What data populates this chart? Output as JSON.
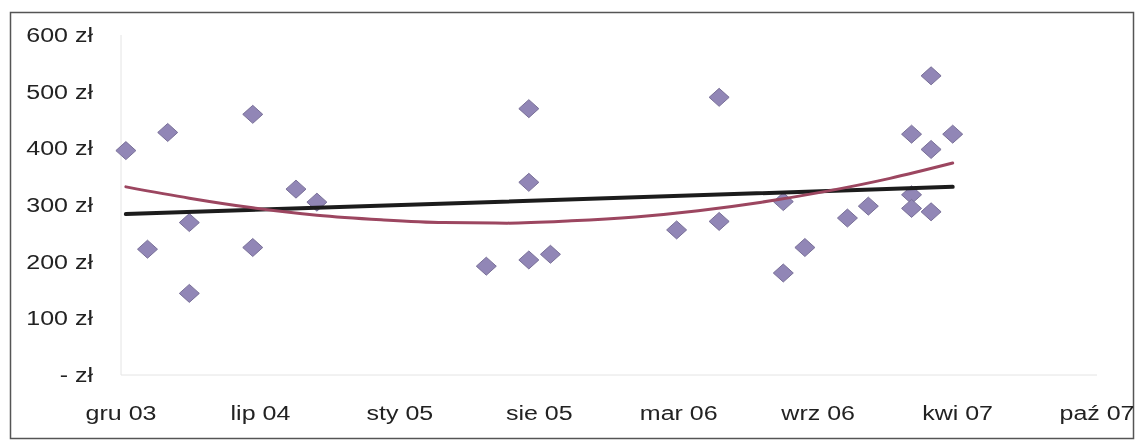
{
  "chart_data": {
    "type": "scatter",
    "marker": "diamond",
    "xlim": [
      "2003-12-25",
      "2007-10-25"
    ],
    "xticks": [
      {
        "value": "2003-12-25",
        "label": "gru 03"
      },
      {
        "value": "2004-07-12",
        "label": "lip 04"
      },
      {
        "value": "2005-01-28",
        "label": "sty 05"
      },
      {
        "value": "2005-08-16",
        "label": "sie 05"
      },
      {
        "value": "2006-03-04",
        "label": "mar 06"
      },
      {
        "value": "2006-09-20",
        "label": "wrz 06"
      },
      {
        "value": "2007-04-08",
        "label": "kwi 07"
      },
      {
        "value": "2007-10-25",
        "label": "paź 07"
      }
    ],
    "ylim": [
      0,
      600
    ],
    "yticks": [
      {
        "value": 0,
        "label": "- zł"
      },
      {
        "value": 100,
        "label": "100 zł"
      },
      {
        "value": 200,
        "label": "200 zł"
      },
      {
        "value": 300,
        "label": "300 zł"
      },
      {
        "value": 400,
        "label": "400 zł"
      },
      {
        "value": 500,
        "label": "500 zł"
      },
      {
        "value": 600,
        "label": "600 zł"
      }
    ],
    "series": [
      {
        "type": "scatter",
        "color": "#9186b6",
        "x": [
          "2004-01-01",
          "2004-02-01",
          "2004-03-01",
          "2004-04-01",
          "2004-04-01",
          "2004-07-01",
          "2004-07-01",
          "2004-09-01",
          "2004-10-01",
          "2005-06-01",
          "2005-08-01",
          "2005-08-01",
          "2005-08-01",
          "2005-09-01",
          "2006-03-01",
          "2006-05-01",
          "2006-05-01",
          "2006-08-01",
          "2006-08-01",
          "2006-09-01",
          "2006-11-01",
          "2006-12-01",
          "2007-02-01",
          "2007-02-01",
          "2007-02-01",
          "2007-03-01",
          "2007-03-01",
          "2007-03-01",
          "2007-04-01"
        ],
        "values": [
          396,
          222,
          428,
          269,
          144,
          460,
          225,
          328,
          305,
          192,
          470,
          340,
          203,
          213,
          256,
          490,
          271,
          180,
          306,
          225,
          277,
          298,
          425,
          318,
          294,
          528,
          398,
          288,
          425
        ]
      },
      {
        "type": "line",
        "marker": "none",
        "color": "#1c1c1c",
        "x": [
          "2004-01-01",
          "2007-04-01"
        ],
        "values": [
          284,
          332
        ]
      },
      {
        "type": "line",
        "marker": "none",
        "color": "#9c4660",
        "x": [
          "2004-01-01",
          "2004-04-01",
          "2004-07-01",
          "2004-10-01",
          "2005-01-01",
          "2005-04-01",
          "2005-07-01",
          "2005-10-01",
          "2006-01-01",
          "2006-04-01",
          "2006-07-01",
          "2006-10-01",
          "2007-01-01",
          "2007-04-01"
        ],
        "values": [
          332,
          312,
          295,
          282,
          274,
          269,
          268,
          272,
          279,
          290,
          305,
          324,
          347,
          374
        ]
      }
    ]
  }
}
